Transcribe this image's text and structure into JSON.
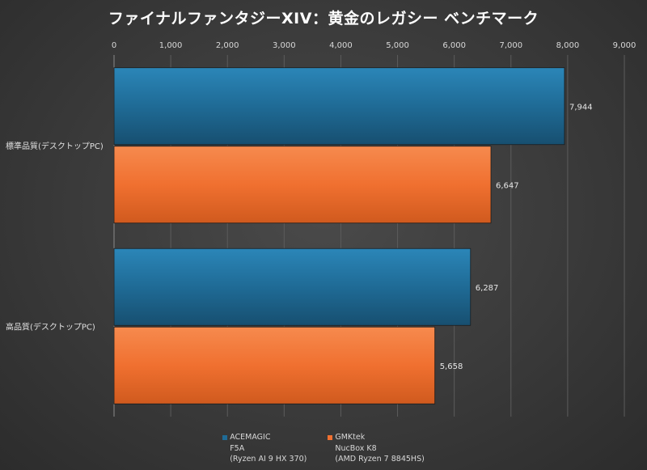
{
  "chart_data": {
    "type": "bar",
    "orientation": "horizontal",
    "title": "ファイナルファンタジーXIV：黄金のレガシー ベンチマーク",
    "categories": [
      "標準品質(デスクトップPC)",
      "高品質(デスクトップPC)"
    ],
    "series": [
      {
        "name": "ACEMAGIC\nF5A\n(Ryzen AI 9 HX 370)",
        "color": "#1f6b96",
        "values": [
          7944,
          6287
        ],
        "value_labels": [
          "7,944",
          "6,287"
        ]
      },
      {
        "name": "GMKtek\nNucBox K8\n(AMD Ryzen 7 8845HS)",
        "color": "#f07030",
        "values": [
          6647,
          5658
        ],
        "value_labels": [
          "6,647",
          "5,658"
        ]
      }
    ],
    "xlim": [
      0,
      9000
    ],
    "ticks": [
      0,
      1000,
      2000,
      3000,
      4000,
      5000,
      6000,
      7000,
      8000,
      9000
    ],
    "tick_labels": [
      "0",
      "1,000",
      "2,000",
      "3,000",
      "4,000",
      "5,000",
      "6,000",
      "7,000",
      "8,000",
      "9,000"
    ],
    "axis_position": "top",
    "grid": true,
    "legend_position": "bottom"
  }
}
